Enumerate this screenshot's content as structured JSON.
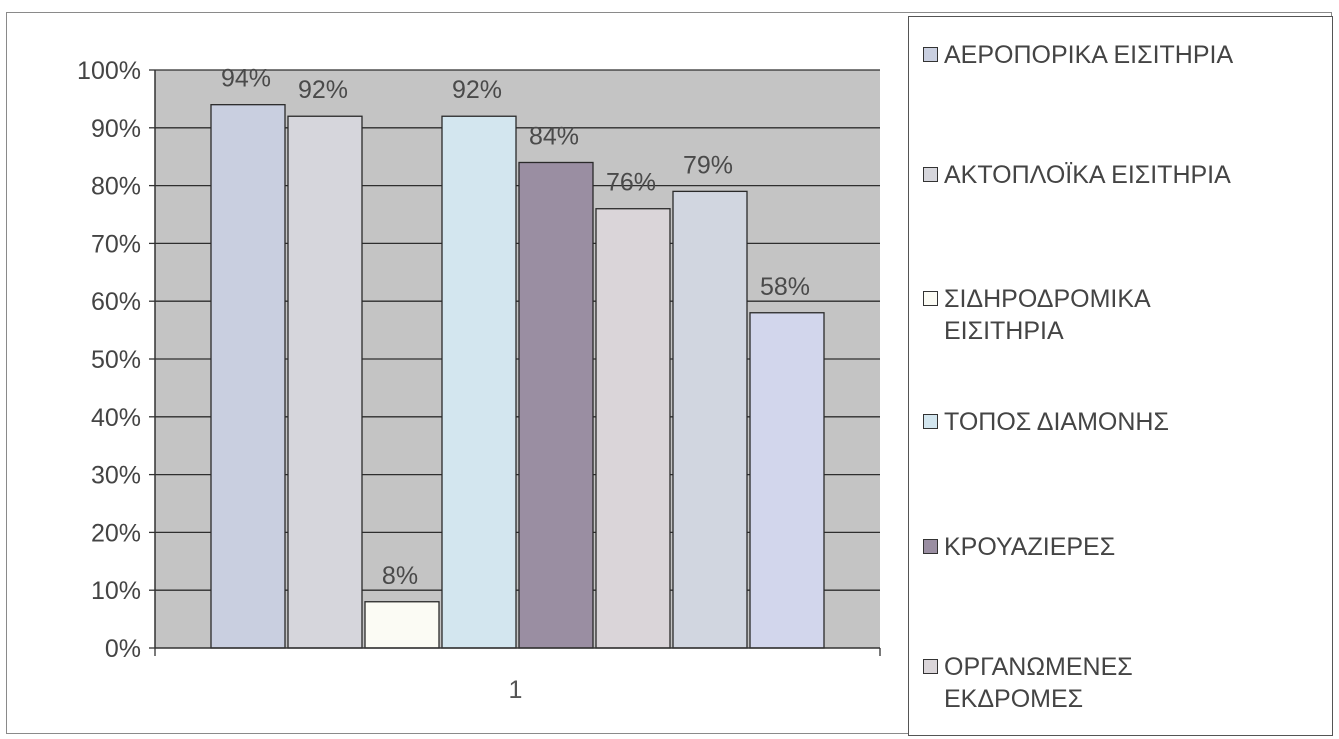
{
  "chart_data": {
    "type": "bar",
    "categories": [
      "1"
    ],
    "series": [
      {
        "name": "ΑΕΡΟΠΟΡΙΚΑ ΕΙΣΙΤΗΡΙΑ",
        "values": [
          94
        ],
        "label": "94%",
        "color": "#c9cfe0"
      },
      {
        "name": "ΑΚΤΟΠΛΟΪΚΑ ΕΙΣΙΤΗΡΙΑ",
        "values": [
          92
        ],
        "label": "92%",
        "color": "#d6d6dc"
      },
      {
        "name": "ΣΙΔΗΡΟΔΡΟΜΙΚΑ ΕΙΣΙΤΗΡΙΑ",
        "values": [
          8
        ],
        "label": "8%",
        "color": "#fbfbf4"
      },
      {
        "name": "ΤΟΠΟΣ ΔΙΑΜΟΝΗΣ",
        "values": [
          92
        ],
        "label": "92%",
        "color": "#d3e6ef"
      },
      {
        "name": "ΚΡΟΥΑΖΙΕΡΕΣ",
        "values": [
          84
        ],
        "label": "84%",
        "color": "#9a8ea2"
      },
      {
        "name": "ΟΡΓΑΝΩΜΕΝΕΣ ΕΚΔΡΟΜΕΣ",
        "values": [
          76
        ],
        "label": "76%",
        "color": "#dad5d9"
      },
      {
        "name": "",
        "values": [
          79
        ],
        "label": "79%",
        "color": "#d1d6e0"
      },
      {
        "name": "",
        "values": [
          58
        ],
        "label": "58%",
        "color": "#d2d6ec"
      }
    ],
    "y_ticks": [
      "0%",
      "10%",
      "20%",
      "30%",
      "40%",
      "50%",
      "60%",
      "70%",
      "80%",
      "90%",
      "100%"
    ],
    "ylim": [
      0,
      100
    ],
    "title": "",
    "xlabel": "",
    "ylabel": "",
    "grid": true,
    "plot_background": "#c4c4c4",
    "legend_position": "right"
  },
  "legend": [
    {
      "label": "ΑΕΡΟΠΟΡΙΚΑ ΕΙΣΙΤΗΡΙΑ",
      "color": "#c9cfe0"
    },
    {
      "label": "ΑΚΤΟΠΛΟΪΚΑ ΕΙΣΙΤΗΡΙΑ",
      "color": "#d6d6dc"
    },
    {
      "label": "ΣΙΔΗΡΟΔΡΟΜΙΚΑ ΕΙΣΙΤΗΡΙΑ",
      "color": "#fbfbf4"
    },
    {
      "label": "ΤΟΠΟΣ ΔΙΑΜΟΝΗΣ",
      "color": "#d3e6ef"
    },
    {
      "label": "ΚΡΟΥΑΖΙΕΡΕΣ",
      "color": "#9a8ea2"
    },
    {
      "label": "ΟΡΓΑΝΩΜΕΝΕΣ ΕΚΔΡΟΜΕΣ",
      "color": "#dad5d9"
    }
  ]
}
